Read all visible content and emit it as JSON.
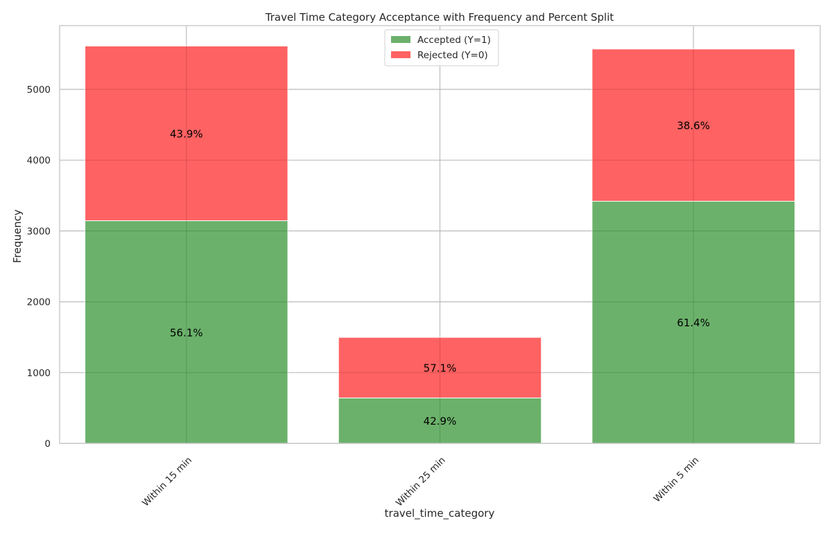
{
  "chart_data": {
    "type": "bar",
    "stacked": true,
    "title": "Travel Time Category Acceptance with Frequency and Percent Split",
    "xlabel": "travel_time_category",
    "ylabel": "Frequency",
    "categories": [
      "Within 15 min",
      "Within 25 min",
      "Within 5 min"
    ],
    "ylim": [
      0,
      5900
    ],
    "yticks": [
      0,
      1000,
      2000,
      3000,
      4000,
      5000
    ],
    "grid": true,
    "legend_position": "top-center",
    "series": [
      {
        "name": "Accepted (Y=1)",
        "color": "#4aa04a",
        "values": [
          3145,
          642,
          3420
        ],
        "percent_labels": [
          "56.1%",
          "42.9%",
          "61.4%"
        ]
      },
      {
        "name": "Rejected (Y=0)",
        "color": "#ff4040",
        "values": [
          2467,
          855,
          2150
        ],
        "percent_labels": [
          "43.9%",
          "57.1%",
          "38.6%"
        ]
      }
    ]
  }
}
